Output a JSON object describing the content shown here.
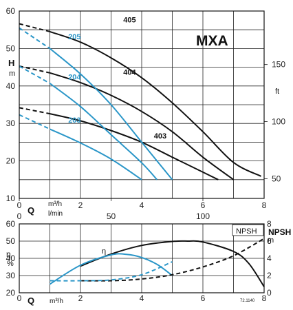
{
  "chart_data": [
    {
      "type": "line",
      "title": "MXA",
      "x_label": "Q",
      "x_units": [
        "m³/h",
        "l/min"
      ],
      "y_label": "H",
      "y_unit": "m",
      "y2_unit": "ft",
      "x_range": [
        0,
        8
      ],
      "y_range": [
        10,
        60
      ],
      "x_ticks": [
        "0",
        "2",
        "4",
        "6",
        "8"
      ],
      "x2_ticks": [
        "0",
        "50",
        "100"
      ],
      "y_ticks": [
        "10",
        "20",
        "30",
        "40",
        "50",
        "60"
      ],
      "y2_ticks": [
        "50",
        "100",
        "150"
      ],
      "grid": true,
      "series": [
        {
          "name": "405",
          "color": "#111111",
          "curve": [
            [
              0,
              56.6
            ],
            [
              1,
              54.5
            ],
            [
              2,
              51.7
            ],
            [
              3,
              47.5
            ],
            [
              4,
              42.2
            ],
            [
              5,
              35.5
            ],
            [
              6,
              27.8
            ],
            [
              7,
              19.6
            ],
            [
              7.9,
              15.9
            ]
          ]
        },
        {
          "name": "404",
          "color": "#111111",
          "curve": [
            [
              0,
              45.3
            ],
            [
              1,
              43.5
            ],
            [
              2,
              40.9
            ],
            [
              3,
              37.5
            ],
            [
              4,
              33.2
            ],
            [
              5,
              27.8
            ],
            [
              6,
              21.0
            ],
            [
              7,
              15.0
            ]
          ]
        },
        {
          "name": "403",
          "color": "#111111",
          "curve": [
            [
              0,
              34.2
            ],
            [
              1,
              32.6
            ],
            [
              2,
              30.7
            ],
            [
              3,
              28.1
            ],
            [
              4,
              25.0
            ],
            [
              5,
              21.0
            ],
            [
              6,
              17.0
            ],
            [
              6.5,
              15.0
            ]
          ]
        },
        {
          "name": "205",
          "color": "#2a96c8",
          "curve": [
            [
              0,
              55.5
            ],
            [
              1,
              50.0
            ],
            [
              2,
              43.2
            ],
            [
              3,
              35.0
            ],
            [
              4,
              25.0
            ],
            [
              5,
              15.0
            ]
          ]
        },
        {
          "name": "204",
          "color": "#2a96c8",
          "curve": [
            [
              0,
              45.3
            ],
            [
              1,
              40.7
            ],
            [
              2,
              34.5
            ],
            [
              3,
              27.0
            ],
            [
              4,
              19.5
            ],
            [
              4.5,
              15.0
            ]
          ]
        },
        {
          "name": "203",
          "color": "#2a96c8",
          "curve": [
            [
              0,
              32.3
            ],
            [
              1,
              28.5
            ],
            [
              2,
              24.8
            ],
            [
              3,
              20.5
            ],
            [
              4,
              15.0
            ]
          ]
        }
      ]
    },
    {
      "type": "line",
      "x_label": "Q",
      "x_unit": "m³/h",
      "y_label": "η",
      "y_unit": "%",
      "y2_label": "NPSH",
      "y2_unit": "m",
      "x_range": [
        0,
        8
      ],
      "y_range": [
        20,
        60
      ],
      "y2_range": [
        0,
        8
      ],
      "x_ticks": [
        "0",
        "2",
        "4",
        "6",
        "8"
      ],
      "y_ticks": [
        "20",
        "30",
        "40",
        "50",
        "60"
      ],
      "y2_ticks": [
        "0",
        "2",
        "4",
        "6",
        "8"
      ],
      "grid": true,
      "series": [
        {
          "name": "η",
          "color": "#111111",
          "curve": [
            [
              2,
              35.5
            ],
            [
              3,
              42.5
            ],
            [
              4,
              47.5
            ],
            [
              5,
              49.8
            ],
            [
              5.5,
              50
            ],
            [
              6,
              49.5
            ],
            [
              7,
              44.0
            ],
            [
              7.5,
              37.0
            ],
            [
              8,
              23.5
            ]
          ]
        },
        {
          "name": "η",
          "color": "#2a96c8",
          "curve": [
            [
              1,
              25.0
            ],
            [
              2,
              36.0
            ],
            [
              3,
              42.0
            ],
            [
              3.5,
              42.3
            ],
            [
              4,
              40.5
            ],
            [
              4.5,
              36.5
            ],
            [
              5,
              30.0
            ]
          ]
        },
        {
          "name": "NPSH",
          "color": "#111111",
          "curve": [
            [
              2,
              1.4
            ],
            [
              3,
              1.4
            ],
            [
              4,
              1.6
            ],
            [
              5,
              2.1
            ],
            [
              6,
              3.0
            ],
            [
              7,
              4.3
            ],
            [
              8,
              6.3
            ]
          ]
        },
        {
          "name": "NPSH",
          "color": "#2a96c8",
          "curve": [
            [
              1,
              1.4
            ],
            [
              2,
              1.4
            ],
            [
              3,
              1.5
            ],
            [
              4,
              2.1
            ],
            [
              5,
              3.6
            ]
          ]
        }
      ]
    }
  ],
  "texts": {
    "title": "MXA",
    "h_label": "H",
    "h_unit": "m",
    "ft_unit": "ft",
    "q_label": "Q",
    "q_unit_m3h": "m³/h",
    "q_unit_lmin": "l/min",
    "eta_label": "η",
    "eta_unit": "%",
    "npsh_box": "NPSH",
    "npsh_label": "NPSH",
    "npsh_unit": "m",
    "eta_curve_label": "η",
    "code": "72.1140"
  }
}
